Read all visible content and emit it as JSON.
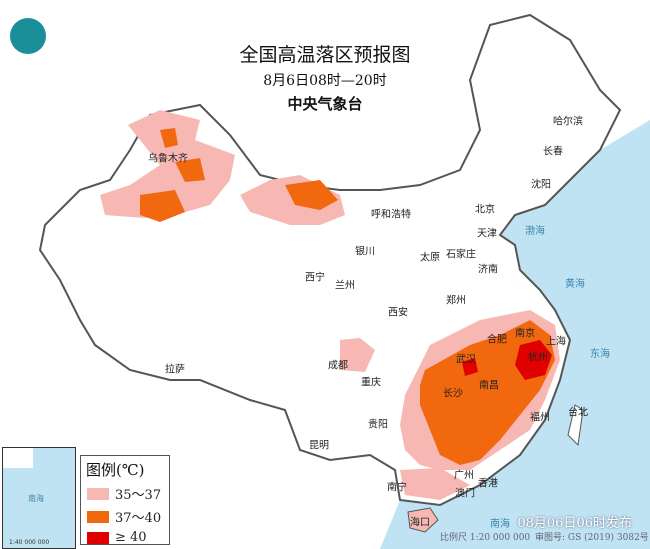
{
  "header": {
    "title": "全国高温落区预报图",
    "subtitle": "8月6日08时—20时",
    "issuer": "中央气象台"
  },
  "legend": {
    "title": "图例(℃)",
    "items": [
      {
        "label": "35～37",
        "color": "#f7b8b4"
      },
      {
        "label": "37～40",
        "color": "#f2680f"
      },
      {
        "label": "≥ 40",
        "color": "#e00000"
      }
    ]
  },
  "colors": {
    "sea": "#bfe3f2",
    "land": "#ffffff",
    "border": "#555555"
  },
  "cities": [
    {
      "name": "乌鲁木齐"
    },
    {
      "name": "哈尔滨"
    },
    {
      "name": "长春"
    },
    {
      "name": "沈阳"
    },
    {
      "name": "呼和浩特"
    },
    {
      "name": "北京"
    },
    {
      "name": "天津"
    },
    {
      "name": "石家庄"
    },
    {
      "name": "太原"
    },
    {
      "name": "济南"
    },
    {
      "name": "银川"
    },
    {
      "name": "西宁"
    },
    {
      "name": "兰州"
    },
    {
      "name": "郑州"
    },
    {
      "name": "西安"
    },
    {
      "name": "合肥"
    },
    {
      "name": "南京"
    },
    {
      "name": "上海"
    },
    {
      "name": "武汉"
    },
    {
      "name": "杭州"
    },
    {
      "name": "成都"
    },
    {
      "name": "重庆"
    },
    {
      "name": "南昌"
    },
    {
      "name": "长沙"
    },
    {
      "name": "福州"
    },
    {
      "name": "台北"
    },
    {
      "name": "贵阳"
    },
    {
      "name": "昆明"
    },
    {
      "name": "拉萨"
    },
    {
      "name": "南宁"
    },
    {
      "name": "广州"
    },
    {
      "name": "香港"
    },
    {
      "name": "澳门"
    },
    {
      "name": "海口"
    }
  ],
  "seas": {
    "bohai": "渤海",
    "huanghai": "黄海",
    "donghai": "东海",
    "nanhai": "南海"
  },
  "footer": {
    "publish_time": "08月06日06时发布",
    "scale": "比例尺 1:20 000 000",
    "map_number": "审图号: GS (2019) 3082号",
    "inset_scale": "1:40 000 000"
  }
}
